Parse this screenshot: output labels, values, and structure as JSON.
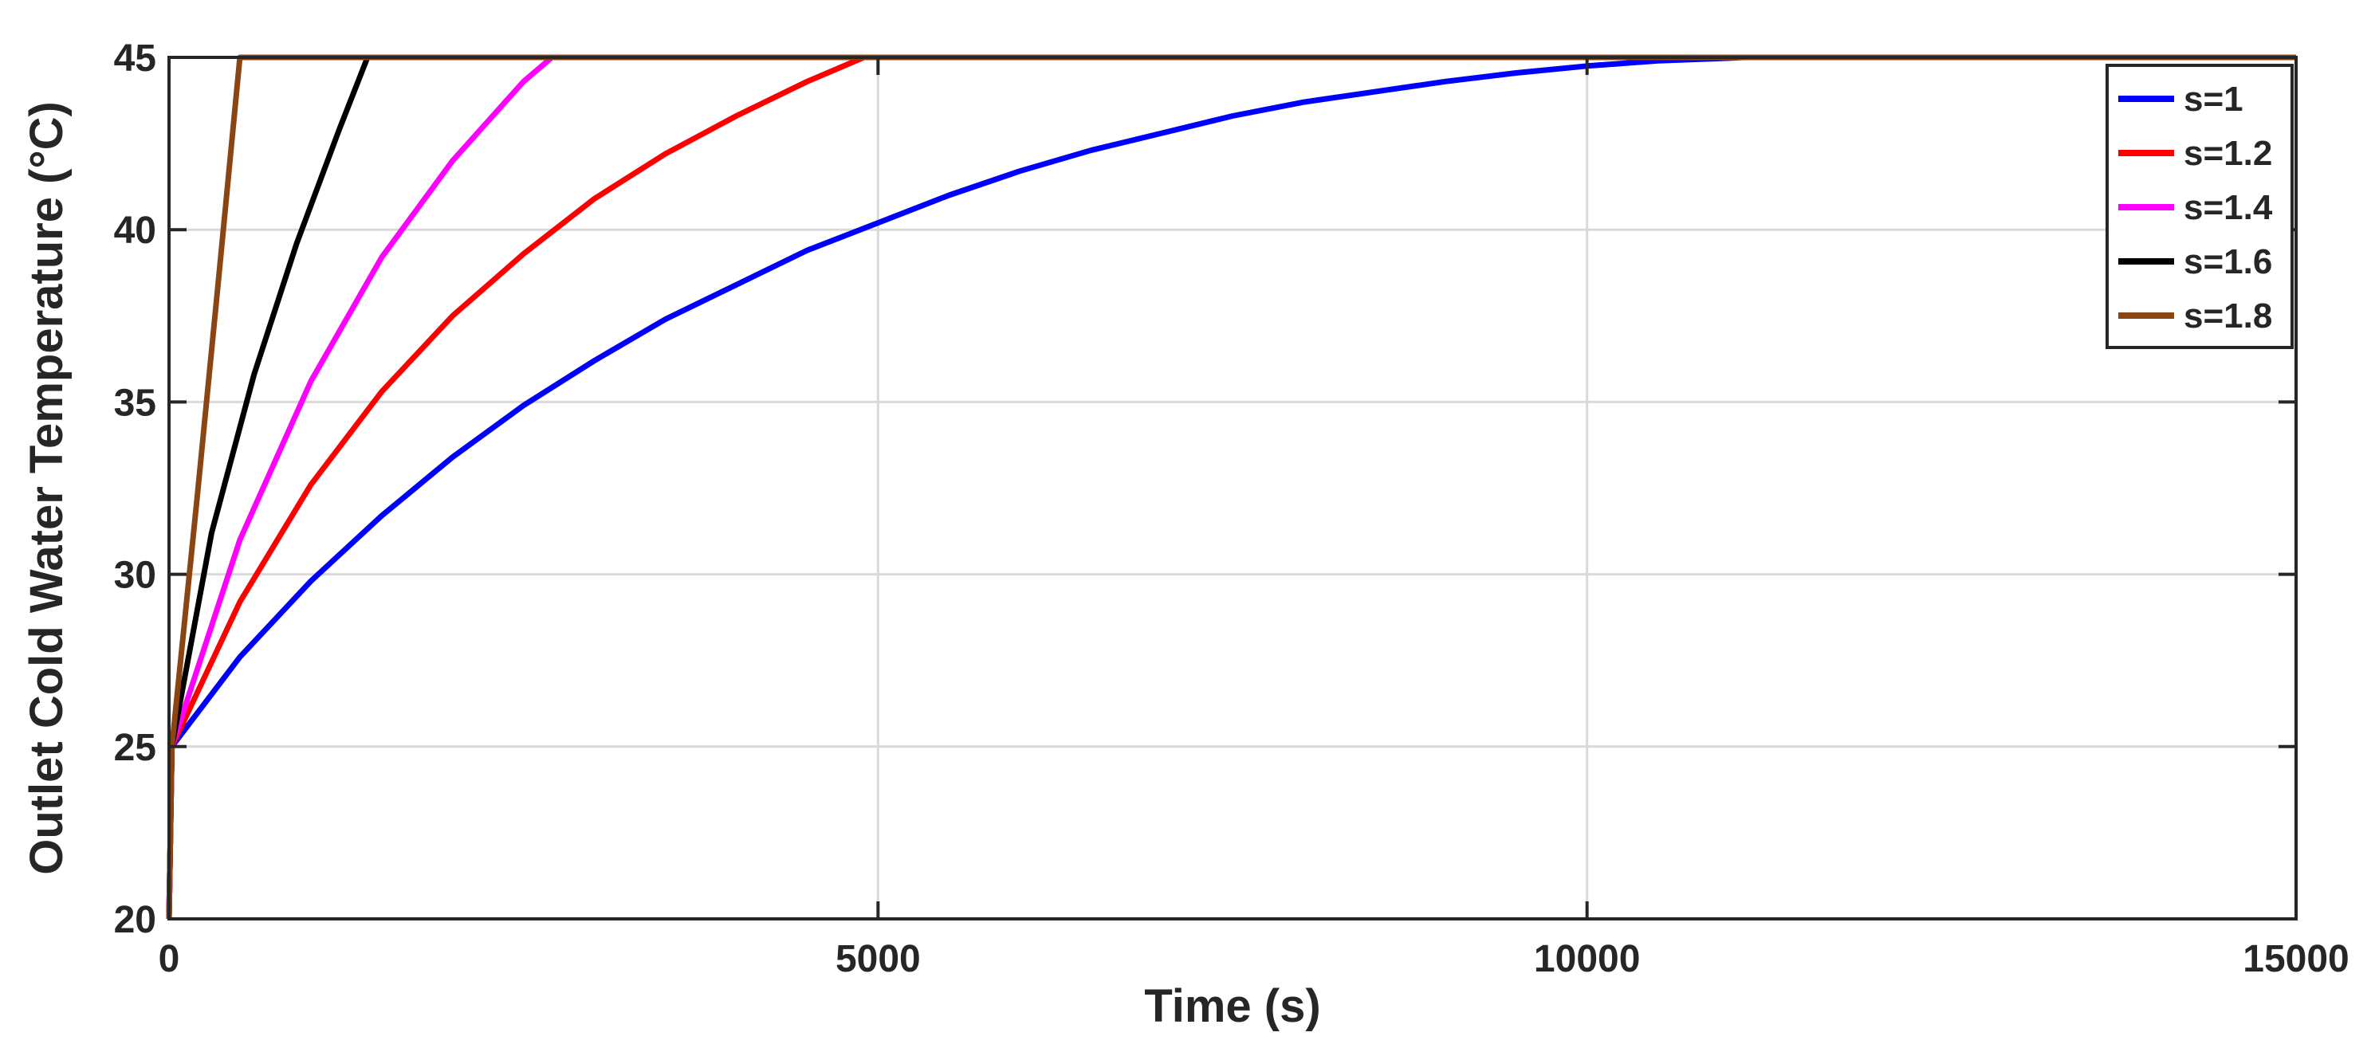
{
  "chart_data": {
    "type": "line",
    "title": "",
    "xlabel": "Time (s)",
    "ylabel": "Outlet Cold Water Temperature (°C)",
    "xlim": [
      0,
      15000
    ],
    "ylim": [
      20,
      45
    ],
    "xticks": [
      "0",
      "5000",
      "10000",
      "15000"
    ],
    "yticks": [
      "20",
      "25",
      "30",
      "35",
      "40",
      "45"
    ],
    "grid": true,
    "legend_position": "top-right",
    "series": [
      {
        "name": "s=1",
        "color": "#0000ff",
        "x": [
          0,
          20,
          500,
          1000,
          1500,
          2000,
          2500,
          3000,
          3500,
          4000,
          4500,
          5000,
          5500,
          6000,
          6500,
          7000,
          7500,
          8000,
          8500,
          9000,
          9500,
          10000,
          10500,
          11000,
          11100,
          15000
        ],
        "y": [
          20,
          25,
          27.6,
          29.8,
          31.7,
          33.4,
          34.9,
          36.2,
          37.4,
          38.4,
          39.4,
          40.2,
          41.0,
          41.7,
          42.3,
          42.8,
          43.3,
          43.7,
          44.0,
          44.3,
          44.55,
          44.75,
          44.9,
          44.98,
          45,
          45
        ]
      },
      {
        "name": "s=1.2",
        "color": "#ff0000",
        "x": [
          0,
          20,
          500,
          1000,
          1500,
          2000,
          2500,
          3000,
          3500,
          4000,
          4500,
          4900,
          15000
        ],
        "y": [
          20,
          25,
          29.2,
          32.6,
          35.3,
          37.5,
          39.3,
          40.9,
          42.2,
          43.3,
          44.3,
          45,
          45
        ]
      },
      {
        "name": "s=1.4",
        "color": "#ff00ff",
        "x": [
          0,
          20,
          500,
          1000,
          1500,
          2000,
          2500,
          2700,
          15000
        ],
        "y": [
          20,
          25,
          31.0,
          35.6,
          39.2,
          42.0,
          44.3,
          45,
          45
        ]
      },
      {
        "name": "s=1.6",
        "color": "#000000",
        "x": [
          0,
          20,
          300,
          600,
          900,
          1200,
          1400,
          15000
        ],
        "y": [
          20,
          25,
          31.2,
          35.8,
          39.6,
          42.9,
          45,
          45
        ]
      },
      {
        "name": "s=1.8",
        "color": "#8b4513",
        "x": [
          0,
          20,
          200,
          350,
          500,
          15000
        ],
        "y": [
          20,
          25,
          32.3,
          38.6,
          45,
          45
        ]
      }
    ]
  }
}
